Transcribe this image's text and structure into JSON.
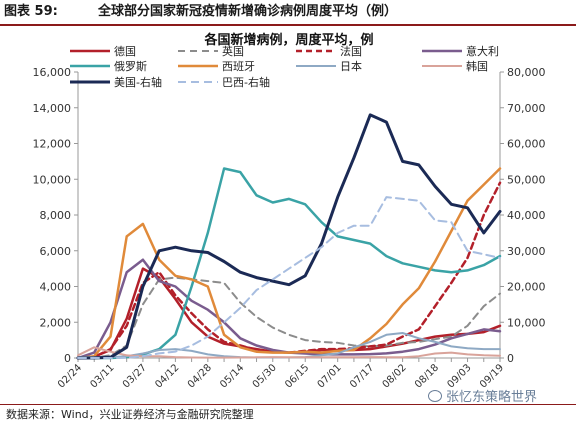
{
  "caption": {
    "figure_no": "图表 59:",
    "title": "全球部分国家新冠疫情新增确诊病例周度平均（例）"
  },
  "source": "数据来源：Wind，兴业证券经济与金融研究院整理",
  "watermark": "张忆东策略世界",
  "chart_data": {
    "type": "line",
    "title": "各国新增病例，周度平均，例",
    "x": [
      "02/24",
      "03/04",
      "03/11",
      "03/19",
      "03/27",
      "04/04",
      "04/12",
      "04/20",
      "04/28",
      "05/06",
      "05/14",
      "05/22",
      "05/30",
      "06/07",
      "06/15",
      "06/23",
      "07/01",
      "07/09",
      "07/17",
      "07/25",
      "08/02",
      "08/10",
      "08/18",
      "08/26",
      "09/03",
      "09/11",
      "09/19"
    ],
    "x_tick_labels": [
      "02/24",
      "03/11",
      "03/27",
      "04/12",
      "04/28",
      "05/14",
      "05/30",
      "06/15",
      "07/01",
      "07/17",
      "08/02",
      "08/18",
      "09/03",
      "09/19"
    ],
    "y_left": {
      "min": 0,
      "max": 16000,
      "ticks": [
        0,
        2000,
        4000,
        6000,
        8000,
        10000,
        12000,
        14000,
        16000
      ],
      "tick_labels": [
        "0",
        "2,000",
        "4,000",
        "6,000",
        "8,000",
        "10,000",
        "12,000",
        "14,000",
        "16,000"
      ]
    },
    "y_right": {
      "min": 0,
      "max": 80000,
      "ticks": [
        0,
        10000,
        20000,
        30000,
        40000,
        50000,
        60000,
        70000,
        80000
      ],
      "tick_labels": [
        "0",
        "10,000",
        "20,000",
        "30,000",
        "40,000",
        "50,000",
        "60,000",
        "70,000",
        "80,000"
      ]
    },
    "grid": false,
    "legend_position": "top",
    "series": [
      {
        "name": "德国",
        "axis": "left",
        "color": "#b3202a",
        "dash": "solid",
        "width": 2.5,
        "values": [
          0,
          80,
          450,
          2200,
          5000,
          4500,
          3300,
          2000,
          1200,
          800,
          650,
          500,
          350,
          300,
          350,
          450,
          450,
          450,
          500,
          650,
          800,
          1000,
          1200,
          1300,
          1350,
          1450,
          1800
        ]
      },
      {
        "name": "英国",
        "axis": "left",
        "color": "#8c8c8c",
        "dash": "7,5",
        "width": 2,
        "values": [
          0,
          30,
          150,
          700,
          3000,
          4400,
          4500,
          4400,
          4300,
          4200,
          3100,
          2300,
          1700,
          1300,
          1000,
          900,
          850,
          700,
          650,
          700,
          850,
          900,
          1050,
          1200,
          1800,
          2900,
          3600
        ]
      },
      {
        "name": "法国",
        "axis": "left",
        "color": "#b3202a",
        "dash": "6,4",
        "width": 2.5,
        "values": [
          0,
          50,
          500,
          1800,
          4200,
          4800,
          3500,
          2500,
          1600,
          900,
          700,
          450,
          350,
          300,
          400,
          500,
          500,
          550,
          650,
          750,
          1200,
          1600,
          2900,
          4200,
          5600,
          8000,
          9800
        ]
      },
      {
        "name": "意大利",
        "axis": "left",
        "color": "#7a5c8e",
        "dash": "solid",
        "width": 2.5,
        "values": [
          0,
          300,
          2000,
          4800,
          5500,
          4300,
          4000,
          3200,
          2700,
          2000,
          1100,
          700,
          450,
          300,
          250,
          200,
          200,
          200,
          220,
          260,
          350,
          500,
          750,
          1100,
          1350,
          1600,
          1500
        ]
      },
      {
        "name": "俄罗斯",
        "axis": "left",
        "color": "#3aa3a6",
        "dash": "solid",
        "width": 2.5,
        "values": [
          0,
          0,
          0,
          50,
          200,
          500,
          1300,
          4000,
          7000,
          10600,
          10400,
          9100,
          8700,
          8900,
          8600,
          7600,
          6800,
          6600,
          6400,
          5700,
          5300,
          5100,
          4900,
          4800,
          4900,
          5200,
          5700
        ]
      },
      {
        "name": "西班牙",
        "axis": "left",
        "color": "#e08a3a",
        "dash": "solid",
        "width": 2.5,
        "values": [
          0,
          100,
          1200,
          6800,
          7500,
          5500,
          4600,
          4400,
          4000,
          1300,
          600,
          350,
          300,
          300,
          350,
          300,
          400,
          450,
          1100,
          1900,
          3000,
          3900,
          5400,
          7100,
          8800,
          9700,
          10600
        ]
      },
      {
        "name": "日本",
        "axis": "left",
        "color": "#8ea9c4",
        "dash": "solid",
        "width": 2,
        "values": [
          50,
          50,
          50,
          100,
          250,
          450,
          500,
          400,
          200,
          100,
          50,
          30,
          30,
          30,
          50,
          150,
          250,
          600,
          900,
          1300,
          1400,
          1100,
          900,
          650,
          550,
          500,
          500
        ]
      },
      {
        "name": "韩国",
        "axis": "left",
        "color": "#d9a39a",
        "dash": "solid",
        "width": 2,
        "values": [
          150,
          600,
          350,
          150,
          100,
          100,
          50,
          30,
          20,
          20,
          30,
          40,
          50,
          45,
          45,
          40,
          40,
          40,
          50,
          45,
          45,
          100,
          250,
          300,
          200,
          150,
          130
        ]
      },
      {
        "name": "美国-右轴",
        "axis": "right",
        "color": "#1b2a55",
        "dash": "solid",
        "width": 3,
        "values": [
          0,
          20,
          200,
          3000,
          20000,
          30000,
          31000,
          30000,
          29500,
          27000,
          24000,
          22500,
          21500,
          20500,
          23000,
          32000,
          45000,
          56000,
          68000,
          66000,
          55000,
          54000,
          48000,
          43000,
          42000,
          35000,
          41000
        ]
      },
      {
        "name": "巴西-右轴",
        "axis": "right",
        "color": "#a7bde0",
        "dash": "8,5",
        "width": 2,
        "values": [
          0,
          0,
          0,
          50,
          500,
          1300,
          1800,
          3500,
          6000,
          10000,
          14000,
          19000,
          22000,
          25000,
          28000,
          31000,
          35000,
          37000,
          37000,
          45000,
          44500,
          44000,
          38500,
          38000,
          30000,
          29000,
          28000
        ]
      }
    ]
  }
}
